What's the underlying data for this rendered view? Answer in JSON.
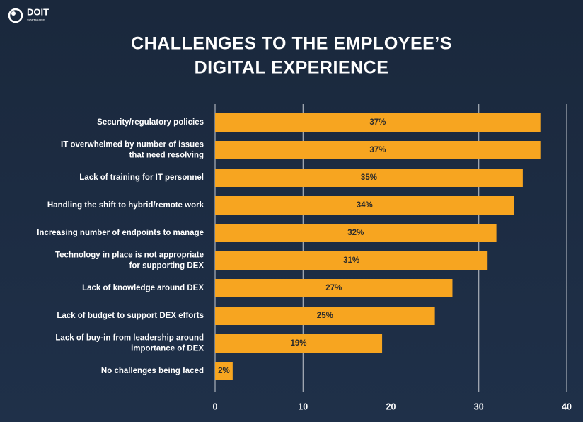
{
  "brand": {
    "name": "DOIT",
    "sub": "SOFTWARE"
  },
  "chart_data": {
    "type": "bar",
    "orientation": "horizontal",
    "title": [
      "CHALLENGES TO THE EMPLOYEE’S",
      "DIGITAL EXPERIENCE"
    ],
    "categories": [
      [
        "Security/regulatory policies"
      ],
      [
        "IT overwhelmed by number of issues",
        "that need resolving"
      ],
      [
        "Lack of training for IT personnel"
      ],
      [
        "Handling the shift to hybrid/remote work"
      ],
      [
        "Increasing number of endpoints to manage"
      ],
      [
        "Technology in place is not appropriate",
        "for supporting DEX"
      ],
      [
        "Lack of knowledge around DEX"
      ],
      [
        "Lack of budget to support DEX efforts"
      ],
      [
        "Lack of buy-in from leadership around",
        "importance of DEX"
      ],
      [
        "No challenges being faced"
      ]
    ],
    "values": [
      37,
      37,
      35,
      34,
      32,
      31,
      27,
      25,
      19,
      2
    ],
    "value_labels": [
      "37%",
      "37%",
      "35%",
      "34%",
      "32%",
      "31%",
      "27%",
      "25%",
      "19%",
      "2%"
    ],
    "color": "#f7a520",
    "xlim": [
      0,
      40
    ],
    "xticks": [
      0,
      10,
      20,
      30,
      40
    ],
    "grid": true
  }
}
